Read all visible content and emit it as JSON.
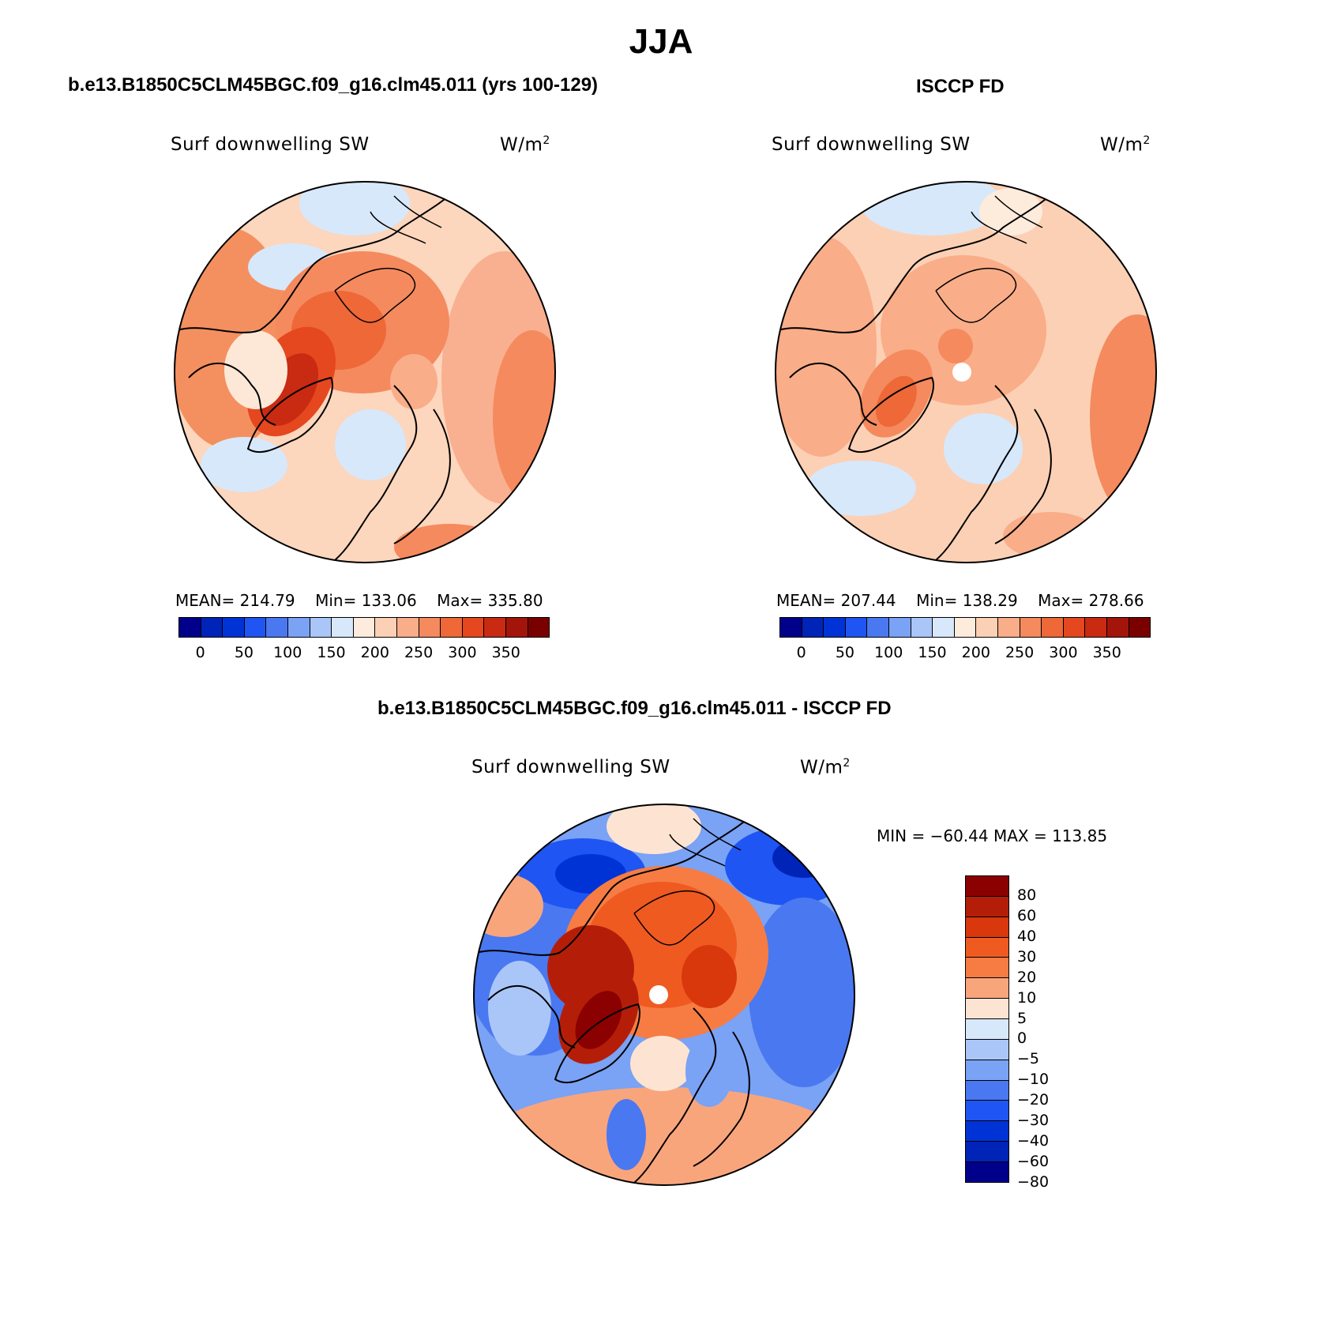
{
  "title": "JJA",
  "panels": [
    {
      "id": "model",
      "title": "b.e13.B1850C5CLM45BGC.f09_g16.clm45.011 (yrs 100-129)",
      "variable": "Surf downwelling SW",
      "units": "W/m",
      "units_exp": "2",
      "stats": {
        "mean_label": "MEAN=",
        "mean": "214.79",
        "min_label": "Min=",
        "min": "133.06",
        "max_label": "Max=",
        "max": "335.80"
      }
    },
    {
      "id": "obs",
      "title": "ISCCP FD",
      "variable": "Surf downwelling SW",
      "units": "W/m",
      "units_exp": "2",
      "stats": {
        "mean_label": "MEAN=",
        "mean": "207.44",
        "min_label": "Min=",
        "min": "138.29",
        "max_label": "Max=",
        "max": "278.66"
      }
    }
  ],
  "abs_colorbar": {
    "colors": [
      "#00008b",
      "#0024b8",
      "#0033d6",
      "#1f55f2",
      "#4a78f0",
      "#7aa2f5",
      "#aac6f8",
      "#d7e8fb",
      "#fdebdc",
      "#fcd0b5",
      "#f9ad88",
      "#f48a5e",
      "#ee6838",
      "#e5471f",
      "#c92a12",
      "#a3150a",
      "#7a0000"
    ],
    "ticks": [
      "0",
      "50",
      "100",
      "150",
      "200",
      "250",
      "300",
      "350"
    ]
  },
  "diff_panel": {
    "title": "b.e13.B1850C5CLM45BGC.f09_g16.clm45.011 - ISCCP FD",
    "variable": "Surf downwelling SW",
    "units": "W/m",
    "units_exp": "2",
    "minmax": "MIN = −60.44 MAX = 113.85"
  },
  "diff_colorbar": {
    "colors": [
      "#8b0000",
      "#b41e08",
      "#d9370c",
      "#ef5a21",
      "#f67c44",
      "#f9a57c",
      "#fde4d2",
      "#d8e8fb",
      "#aac6f8",
      "#7aa2f5",
      "#4a78f0",
      "#1f55f2",
      "#0033d6",
      "#0024b8",
      "#00008b"
    ],
    "ticks": [
      "80",
      "60",
      "40",
      "30",
      "20",
      "10",
      "5",
      "0",
      "−5",
      "−10",
      "−20",
      "−30",
      "−40",
      "−60",
      "−80"
    ]
  }
}
